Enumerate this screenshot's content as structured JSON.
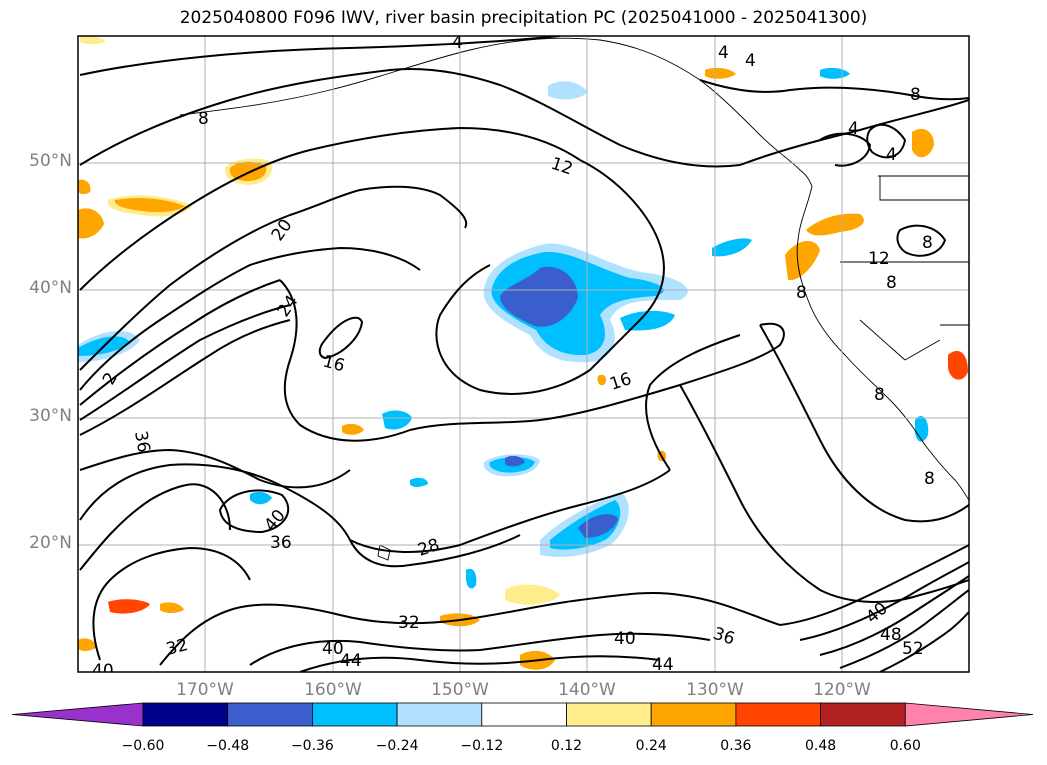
{
  "title": "2025040800 F096 IWV, river basin precipitation PC (2025041000 - 2025041300)",
  "map": {
    "projection": "cylindrical",
    "lon_range": [
      -180,
      -110
    ],
    "lat_range": [
      10,
      60
    ],
    "lat_labels": [
      {
        "lat": 50,
        "label": "50°N"
      },
      {
        "lat": 40,
        "label": "40°N"
      },
      {
        "lat": 30,
        "label": "30°N"
      },
      {
        "lat": 20,
        "label": "20°N"
      }
    ],
    "lon_labels": [
      {
        "lon": -170,
        "label": "170°W"
      },
      {
        "lon": -160,
        "label": "160°W"
      },
      {
        "lon": -150,
        "label": "150°W"
      },
      {
        "lon": -140,
        "label": "140°W"
      },
      {
        "lon": -130,
        "label": "130°W"
      },
      {
        "lon": -120,
        "label": "120°W"
      }
    ],
    "gridlines": true,
    "contour_labels": [
      "4",
      "4",
      "4",
      "8",
      "8",
      "8",
      "4",
      "4",
      "12",
      "12",
      "16",
      "16",
      "20",
      "24",
      "36",
      "40",
      "36",
      "28",
      "32",
      "32",
      "36",
      "40",
      "40",
      "44",
      "44",
      "40",
      "48",
      "52",
      "8",
      "8",
      "8",
      "8",
      "2",
      "40"
    ]
  },
  "colorbar": {
    "colors": [
      "#9932CC",
      "#00008B",
      "#3A5FCD",
      "#00BFFF",
      "#B0E2FF",
      "#FFFFFF",
      "#FFEC8B",
      "#FFA500",
      "#FF4500",
      "#B22222",
      "#FF82AB"
    ],
    "ticks": [
      "−0.60",
      "−0.48",
      "−0.36",
      "−0.24",
      "−0.12",
      "0.12",
      "0.24",
      "0.36",
      "0.48",
      "0.60"
    ]
  },
  "colors": {
    "grid": "#b0b0b0",
    "contour": "#000000"
  }
}
